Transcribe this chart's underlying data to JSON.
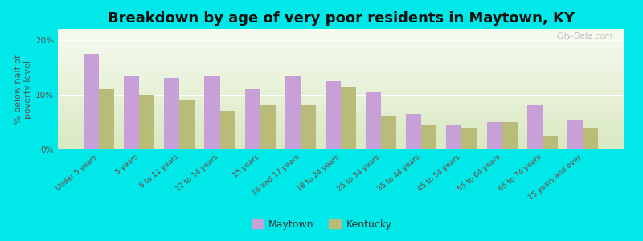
{
  "title": "Breakdown by age of very poor residents in Maytown, KY",
  "ylabel": "% below half of\npoverty level",
  "categories": [
    "Under 5 years",
    "5 years",
    "6 to 11 years",
    "12 to 14 years",
    "15 years",
    "16 and 17 years",
    "18 to 24 years",
    "25 to 34 years",
    "35 to 44 years",
    "45 to 54 years",
    "55 to 64 years",
    "65 to 74 years",
    "75 years and over"
  ],
  "maytown_values": [
    17.5,
    13.5,
    13.0,
    13.5,
    11.0,
    13.5,
    12.5,
    10.5,
    6.5,
    4.5,
    5.0,
    8.0,
    5.5
  ],
  "kentucky_values": [
    11.0,
    10.0,
    9.0,
    7.0,
    8.0,
    8.0,
    11.5,
    6.0,
    4.5,
    4.0,
    5.0,
    2.5,
    4.0
  ],
  "maytown_color": "#c8a0d8",
  "kentucky_color": "#b8bc78",
  "background_color": "#00e8e8",
  "ylim": [
    0,
    22
  ],
  "ytick_labels": [
    "0%",
    "10%",
    "20%"
  ],
  "bar_width": 0.38,
  "title_fontsize": 13,
  "axis_label_fontsize": 8,
  "tick_fontsize": 7.5,
  "legend_labels": [
    "Maytown",
    "Kentucky"
  ],
  "watermark": "City-Data.com"
}
